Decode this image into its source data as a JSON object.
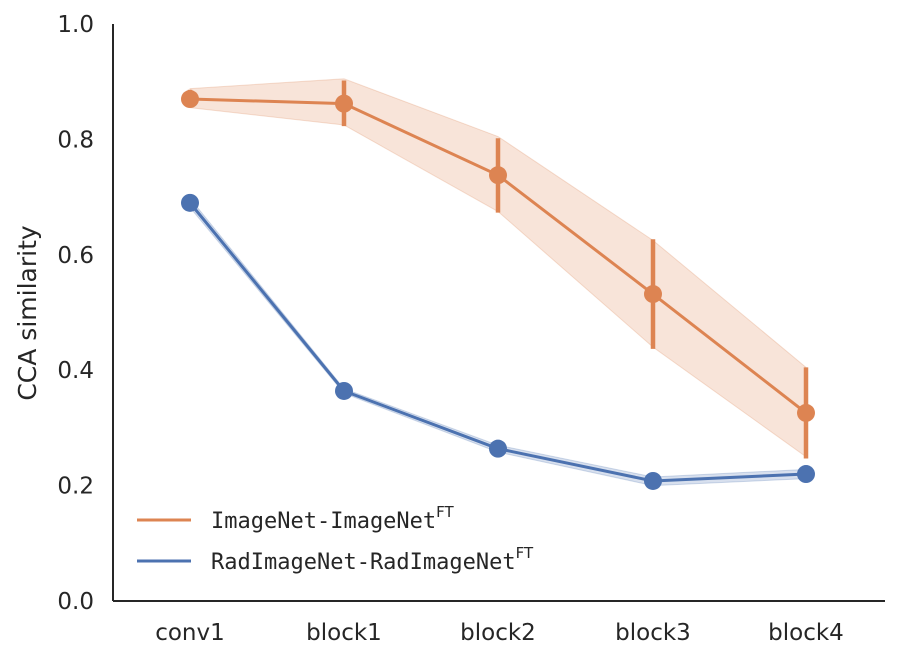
{
  "chart_data": {
    "type": "line",
    "title": "",
    "xlabel": "",
    "ylabel": "CCA similarity",
    "categories": [
      "conv1",
      "block1",
      "block2",
      "block3",
      "block4"
    ],
    "ylim": [
      0.0,
      1.0
    ],
    "yticks": [
      "0.0",
      "0.2",
      "0.4",
      "0.6",
      "0.8",
      "1.0"
    ],
    "grid": false,
    "legend_position": "bottom-left",
    "series": [
      {
        "name": "ImageNet-ImageNet",
        "name_superscript": "FT",
        "color": "#dd8452",
        "values": [
          0.87,
          0.862,
          0.738,
          0.532,
          0.326
        ],
        "err_low": [
          0.857,
          0.823,
          0.673,
          0.437,
          0.247
        ],
        "err_high": [
          0.886,
          0.902,
          0.802,
          0.627,
          0.405
        ],
        "band_low": [
          0.855,
          0.825,
          0.675,
          0.44,
          0.25
        ],
        "band_high": [
          0.888,
          0.905,
          0.805,
          0.625,
          0.405
        ]
      },
      {
        "name": "RadImageNet-RadImageNet",
        "name_superscript": "FT",
        "color": "#4c72b0",
        "values": [
          0.69,
          0.364,
          0.264,
          0.208,
          0.22
        ],
        "err_low": [
          0.683,
          0.36,
          0.26,
          0.203,
          0.215
        ],
        "err_high": [
          0.698,
          0.368,
          0.268,
          0.213,
          0.225
        ],
        "band_low": [
          0.682,
          0.36,
          0.258,
          0.2,
          0.212
        ],
        "band_high": [
          0.698,
          0.368,
          0.27,
          0.215,
          0.228
        ]
      }
    ]
  }
}
